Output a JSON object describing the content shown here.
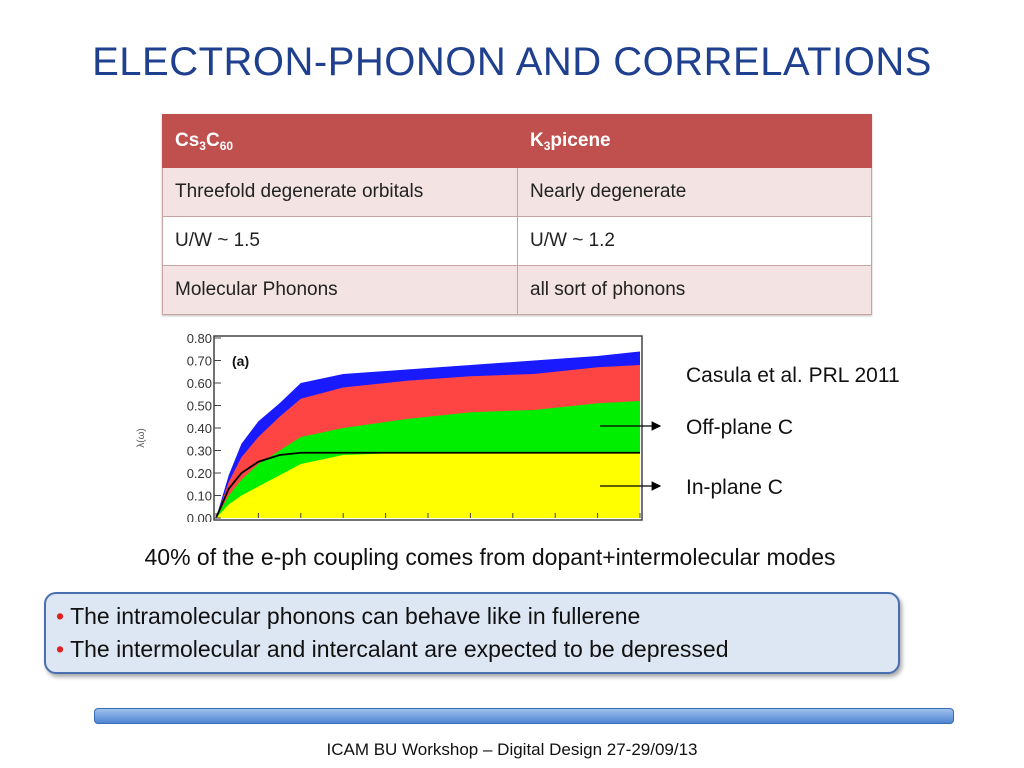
{
  "title": "ELECTRON-PHONON AND CORRELATIONS",
  "table": {
    "headers": [
      {
        "base": "Cs",
        "sub1": "3",
        "mid": "C",
        "sub2": "60",
        "tail": ""
      },
      {
        "base": "K",
        "sub1": "3",
        "mid": "picene",
        "sub2": "",
        "tail": ""
      }
    ],
    "rows": [
      [
        "Threefold degenerate orbitals",
        "Nearly degenerate"
      ],
      [
        "U/W ~ 1.5",
        "U/W ~ 1.2"
      ],
      [
        "Molecular Phonons",
        "all sort of phonons"
      ]
    ]
  },
  "chart_data": {
    "type": "area",
    "panel_label": "(a)",
    "ylabel": "λ(ω)",
    "ylim": [
      0,
      0.8
    ],
    "yticks": [
      "0.00",
      "0.10",
      "0.20",
      "0.30",
      "0.40",
      "0.50",
      "0.60",
      "0.70",
      "0.80"
    ],
    "x": [
      0,
      0.03,
      0.06,
      0.1,
      0.15,
      0.2,
      0.3,
      0.45,
      0.6,
      0.75,
      0.9,
      1.0
    ],
    "series": [
      {
        "color": "#ffff00",
        "values": [
          0,
          0.06,
          0.1,
          0.14,
          0.19,
          0.24,
          0.28,
          0.29,
          0.29,
          0.29,
          0.29,
          0.29
        ]
      },
      {
        "color": "#00ee00",
        "values": [
          0,
          0.1,
          0.17,
          0.24,
          0.3,
          0.36,
          0.4,
          0.44,
          0.47,
          0.48,
          0.51,
          0.52
        ]
      },
      {
        "color": "#ff4444",
        "values": [
          0,
          0.16,
          0.27,
          0.36,
          0.45,
          0.53,
          0.58,
          0.61,
          0.63,
          0.64,
          0.67,
          0.68
        ]
      },
      {
        "color": "#1a1aff",
        "values": [
          0,
          0.19,
          0.33,
          0.43,
          0.51,
          0.6,
          0.64,
          0.66,
          0.68,
          0.7,
          0.72,
          0.74
        ]
      }
    ],
    "line": {
      "color": "#000000",
      "values": [
        0,
        0.13,
        0.2,
        0.25,
        0.28,
        0.29,
        0.29,
        0.29,
        0.29,
        0.29,
        0.29,
        0.29
      ]
    }
  },
  "annotations": {
    "reference": "Casula et al. PRL 2011",
    "off_plane": "Off-plane C",
    "in_plane": "In-plane C"
  },
  "statement": "40% of the e-ph coupling comes from dopant+intermolecular modes",
  "bullets": [
    "The intramolecular phonons can behave like in fullerene",
    "The intermolecular and intercalant are expected to be depressed"
  ],
  "bullet_symbol": "•",
  "footer": "ICAM BU Workshop – Digital Design 27-29/09/13"
}
